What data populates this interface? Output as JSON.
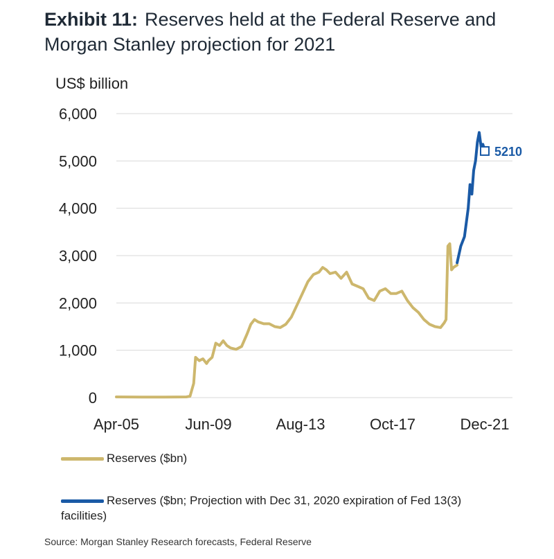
{
  "title": {
    "exhibit": "Exhibit 11:",
    "text": "Reserves held at the Federal Reserve and Morgan Stanley projection for 2021"
  },
  "source": "Source: Morgan Stanley Research forecasts, Federal Reserve",
  "colors": {
    "reserves": "#cdb76d",
    "projection": "#1a5aa6",
    "grid": "#d9d9d9",
    "label": "#1a5aa6"
  },
  "chart_data": {
    "type": "line",
    "ylabel": "US$ billion",
    "ylim": [
      0,
      6000
    ],
    "yticks": [
      "0",
      "1,000",
      "2,000",
      "3,000",
      "4,000",
      "5,000",
      "6,000"
    ],
    "ytick_values": [
      0,
      1000,
      2000,
      3000,
      4000,
      5000,
      6000
    ],
    "xlim": [
      "2005-04",
      "2021-12"
    ],
    "xticks": [
      "Apr-05",
      "Jun-09",
      "Aug-13",
      "Oct-17",
      "Dec-21"
    ],
    "xtick_dates": [
      "2005-04",
      "2009-06",
      "2013-08",
      "2017-10",
      "2021-12"
    ],
    "grid": true,
    "legend_position": "bottom",
    "series": [
      {
        "name": "Reserves ($bn)",
        "x": [
          "2005-04",
          "2006-06",
          "2007-06",
          "2008-06",
          "2008-08",
          "2008-10",
          "2008-11",
          "2009-01",
          "2009-03",
          "2009-05",
          "2009-06",
          "2009-08",
          "2009-10",
          "2009-12",
          "2010-02",
          "2010-04",
          "2010-06",
          "2010-09",
          "2010-12",
          "2011-03",
          "2011-05",
          "2011-07",
          "2011-09",
          "2011-12",
          "2012-03",
          "2012-06",
          "2012-09",
          "2012-12",
          "2013-03",
          "2013-06",
          "2013-09",
          "2013-12",
          "2014-03",
          "2014-06",
          "2014-08",
          "2014-10",
          "2014-12",
          "2015-03",
          "2015-06",
          "2015-09",
          "2015-12",
          "2016-03",
          "2016-06",
          "2016-09",
          "2016-12",
          "2017-03",
          "2017-06",
          "2017-09",
          "2017-12",
          "2018-03",
          "2018-06",
          "2018-09",
          "2018-12",
          "2019-03",
          "2019-06",
          "2019-09",
          "2019-12",
          "2020-02",
          "2020-03",
          "2020-04",
          "2020-05",
          "2020-06",
          "2020-07",
          "2020-09"
        ],
        "values": [
          15,
          12,
          12,
          15,
          30,
          300,
          850,
          780,
          820,
          720,
          780,
          850,
          1150,
          1100,
          1200,
          1100,
          1050,
          1020,
          1080,
          1350,
          1550,
          1650,
          1600,
          1560,
          1560,
          1500,
          1480,
          1550,
          1700,
          1950,
          2200,
          2450,
          2600,
          2650,
          2750,
          2700,
          2620,
          2650,
          2520,
          2650,
          2400,
          2350,
          2300,
          2100,
          2050,
          2250,
          2300,
          2200,
          2200,
          2250,
          2050,
          1900,
          1800,
          1650,
          1550,
          1500,
          1480,
          1580,
          1650,
          3200,
          3250,
          2700,
          2750,
          2800
        ]
      },
      {
        "name": "Reserves ($bn;  Projection with Dec 31, 2020 expiration of Fed 13(3) facilities)",
        "x": [
          "2020-09",
          "2020-11",
          "2021-01",
          "2021-03",
          "2021-04",
          "2021-05",
          "2021-06",
          "2021-07",
          "2021-08",
          "2021-09",
          "2021-10",
          "2021-11",
          "2021-12"
        ],
        "values": [
          2850,
          3200,
          3400,
          4000,
          4500,
          4300,
          4800,
          5000,
          5400,
          5600,
          5300,
          5350,
          5210
        ]
      }
    ],
    "annotations": [
      {
        "text": "5210",
        "x": "2021-12",
        "y": 5210
      }
    ]
  }
}
